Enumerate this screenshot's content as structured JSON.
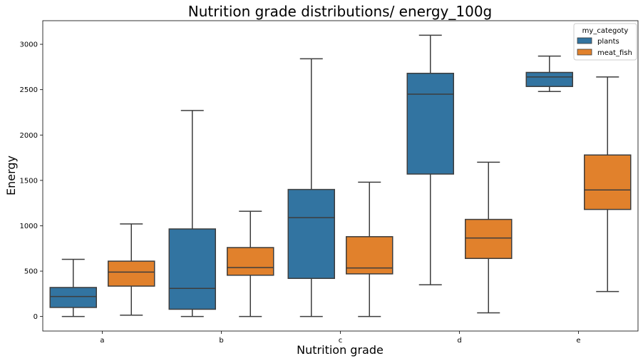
{
  "chart_data": {
    "type": "boxplot",
    "title": "Nutrition grade distributions/ energy_100g",
    "xlabel": "Nutrition grade",
    "ylabel": "Energy",
    "categories": [
      "a",
      "b",
      "c",
      "d",
      "e"
    ],
    "ylim": [
      -160,
      3260
    ],
    "yticks": [
      0,
      500,
      1000,
      1500,
      2000,
      2500,
      3000
    ],
    "grid": false,
    "legend": {
      "title": "my_categoty",
      "placement": "top-right"
    },
    "series": [
      {
        "name": "plants",
        "color": "#3274a1",
        "boxes": [
          {
            "whislo": 0,
            "q1": 100,
            "med": 220,
            "q3": 320,
            "whishi": 630
          },
          {
            "whislo": 0,
            "q1": 80,
            "med": 310,
            "q3": 965,
            "whishi": 2270
          },
          {
            "whislo": 0,
            "q1": 420,
            "med": 1090,
            "q3": 1400,
            "whishi": 2840
          },
          {
            "whislo": 350,
            "q1": 1570,
            "med": 2450,
            "q3": 2680,
            "whishi": 3100
          },
          {
            "whislo": 2480,
            "q1": 2535,
            "med": 2640,
            "q3": 2690,
            "whishi": 2870
          }
        ]
      },
      {
        "name": "meat_fish",
        "color": "#e1812c",
        "boxes": [
          {
            "whislo": 15,
            "q1": 335,
            "med": 490,
            "q3": 610,
            "whishi": 1020
          },
          {
            "whislo": 0,
            "q1": 455,
            "med": 540,
            "q3": 760,
            "whishi": 1160
          },
          {
            "whislo": 0,
            "q1": 470,
            "med": 535,
            "q3": 880,
            "whishi": 1480
          },
          {
            "whislo": 40,
            "q1": 640,
            "med": 865,
            "q3": 1070,
            "whishi": 1700
          },
          {
            "whislo": 275,
            "q1": 1180,
            "med": 1395,
            "q3": 1780,
            "whishi": 2640
          }
        ]
      }
    ]
  }
}
